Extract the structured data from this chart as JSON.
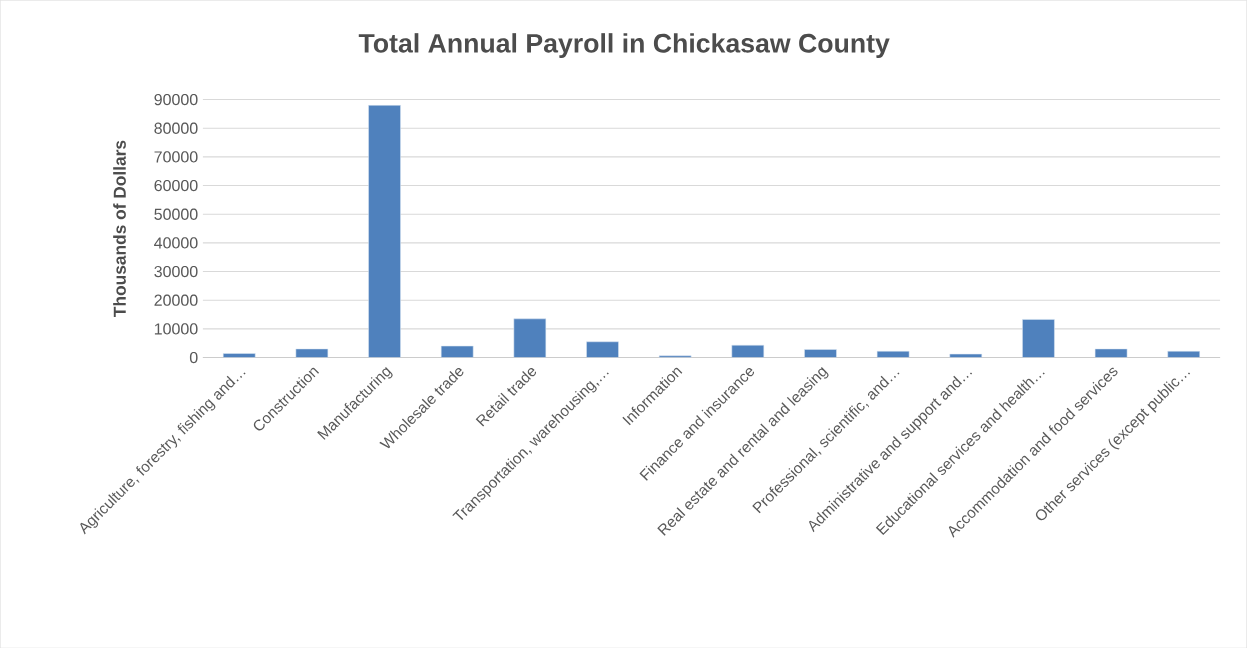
{
  "chart_data": {
    "type": "bar",
    "title": "Total Annual Payroll in Chickasaw County",
    "ylabel": "Thousands of Dollars",
    "categories": [
      "Agriculture, forestry, fishing and…",
      "Construction",
      "Manufacturing",
      "Wholesale trade",
      "Retail trade",
      "Transportation, warehousing,…",
      "Information",
      "Finance and insurance",
      "Real estate and rental and leasing",
      "Professional, scientific, and…",
      "Administrative and support and…",
      "Educational services and health…",
      "Accommodation and food services",
      "Other services (except public…"
    ],
    "values": [
      1400,
      3000,
      88000,
      4000,
      13500,
      5500,
      600,
      4300,
      2800,
      2200,
      1200,
      13300,
      3000,
      2200
    ],
    "color": "#4f81bd",
    "ylim": [
      0,
      90000
    ],
    "yticks": [
      0,
      10000,
      20000,
      30000,
      40000,
      50000,
      60000,
      70000,
      80000,
      90000
    ],
    "grid": "y"
  }
}
